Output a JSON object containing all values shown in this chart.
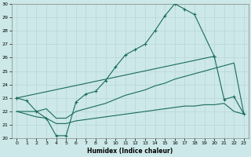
{
  "xlabel": "Humidex (Indice chaleur)",
  "line_color": "#1a6b5a",
  "bg_color": "#cce8e8",
  "grid_color": "#b8d4d4",
  "ylim": [
    20,
    30
  ],
  "xlim": [
    -0.5,
    23.5
  ],
  "yticks": [
    20,
    21,
    22,
    23,
    24,
    25,
    26,
    27,
    28,
    29,
    30
  ],
  "xtick_labels": [
    "0",
    "1",
    "2",
    "3",
    "4",
    "5",
    "6",
    "7",
    "8",
    "9",
    "10",
    "11",
    "12",
    "13",
    "14",
    "15",
    "16",
    "17",
    "18",
    "19",
    "20",
    "21",
    "22",
    "23"
  ],
  "xticks": [
    0,
    1,
    2,
    3,
    4,
    5,
    6,
    7,
    8,
    9,
    10,
    11,
    12,
    13,
    14,
    15,
    16,
    17,
    18,
    19,
    20,
    21,
    22,
    23
  ],
  "curve1_x": [
    0,
    1,
    2,
    3,
    4,
    5,
    6,
    7,
    8,
    9,
    10,
    11,
    12,
    13,
    14,
    15,
    16,
    17,
    18,
    20
  ],
  "curve1_y": [
    23.0,
    22.8,
    22.0,
    21.5,
    20.2,
    20.2,
    22.7,
    23.3,
    23.5,
    24.3,
    25.3,
    26.2,
    26.6,
    27.0,
    28.0,
    29.1,
    30.0,
    29.6,
    29.2,
    26.1
  ],
  "curve2_x": [
    0,
    20,
    21,
    22,
    23
  ],
  "curve2_y": [
    23.0,
    26.1,
    22.9,
    23.1,
    21.8
  ],
  "curve3_x": [
    0,
    1,
    2,
    3,
    4,
    5,
    6,
    7,
    8,
    9,
    10,
    11,
    12,
    13,
    14,
    15,
    16,
    17,
    18,
    19,
    20,
    21,
    22,
    23
  ],
  "curve3_y": [
    22.0,
    22.0,
    22.0,
    22.2,
    21.5,
    21.5,
    22.0,
    22.2,
    22.4,
    22.6,
    22.9,
    23.2,
    23.4,
    23.6,
    23.9,
    24.1,
    24.4,
    24.6,
    24.8,
    25.0,
    25.2,
    25.4,
    25.6,
    21.8
  ],
  "curve4_x": [
    0,
    1,
    2,
    3,
    4,
    5,
    6,
    7,
    8,
    9,
    10,
    11,
    12,
    13,
    14,
    15,
    16,
    17,
    18,
    19,
    20,
    21,
    22,
    23
  ],
  "curve4_y": [
    22.0,
    21.8,
    21.6,
    21.5,
    21.1,
    21.1,
    21.3,
    21.4,
    21.5,
    21.6,
    21.7,
    21.8,
    21.9,
    22.0,
    22.1,
    22.2,
    22.3,
    22.4,
    22.4,
    22.5,
    22.5,
    22.6,
    22.0,
    21.8
  ]
}
